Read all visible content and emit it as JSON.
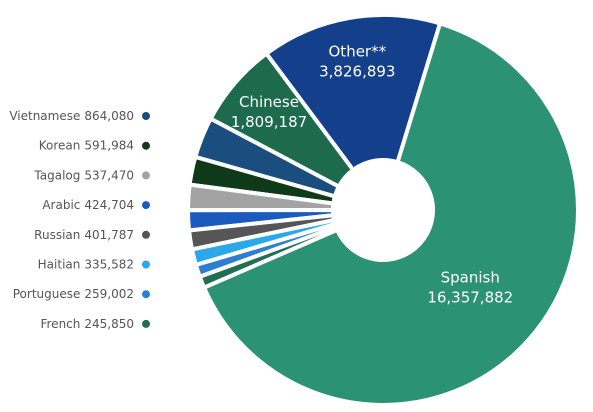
{
  "chart_data": {
    "type": "donut",
    "categories": [
      "Other**",
      "Chinese",
      "Vietnamese",
      "Korean",
      "Tagalog",
      "Arabic",
      "Russian",
      "Haitian",
      "Portuguese",
      "French",
      "Spanish"
    ],
    "values": [
      3826893,
      1809187,
      864080,
      591984,
      537470,
      424704,
      401787,
      335582,
      259002,
      245850,
      16357882
    ],
    "value_labels": [
      "3,826,893",
      "1,809,187",
      "864,080",
      "591,984",
      "537,470",
      "424,704",
      "401,787",
      "335,582",
      "259,002",
      "245,850",
      "16,357,882"
    ],
    "colors": [
      "#143f8b",
      "#1d6a4d",
      "#1a4e7e",
      "#0f3a19",
      "#a3a3a3",
      "#1b5bbe",
      "#565656",
      "#2aa8e9",
      "#2f7fd1",
      "#1f6f50",
      "#2b9274"
    ]
  }
}
